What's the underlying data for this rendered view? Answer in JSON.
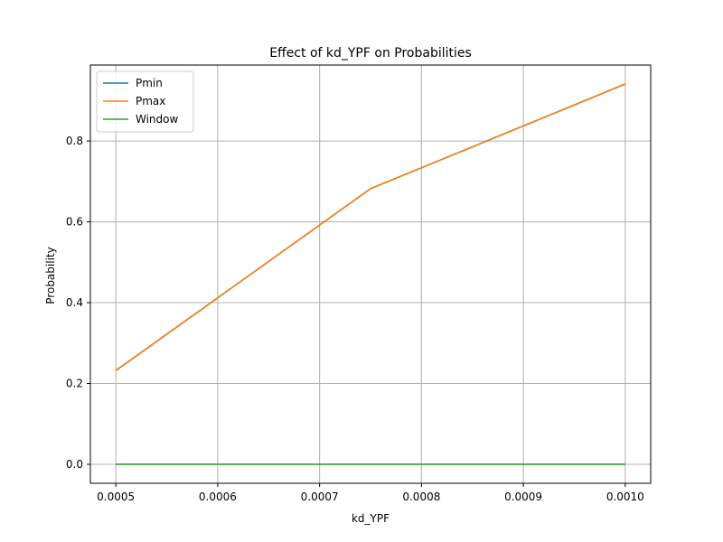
{
  "chart_data": {
    "type": "line",
    "title": "Effect of kd_YPF on Probabilities",
    "xlabel": "kd_YPF",
    "ylabel": "Probability",
    "x": [
      0.0005,
      0.00075,
      0.001
    ],
    "series": [
      {
        "name": "Pmin",
        "values": [
          0.232,
          0.682,
          0.941
        ],
        "color": "#1f77b4"
      },
      {
        "name": "Pmax",
        "values": [
          0.232,
          0.682,
          0.941
        ],
        "color": "#ff7f0e"
      },
      {
        "name": "Window",
        "values": [
          0.0,
          0.0,
          0.0
        ],
        "color": "#2ca02c"
      }
    ],
    "xlim": [
      0.000475,
      0.001025
    ],
    "ylim": [
      -0.047,
      0.988
    ],
    "xticks": [
      0.0005,
      0.0006,
      0.0007,
      0.0008,
      0.0009,
      0.001
    ],
    "xtick_labels": [
      "0.0005",
      "0.0006",
      "0.0007",
      "0.0008",
      "0.0009",
      "0.0010"
    ],
    "yticks": [
      0.0,
      0.2,
      0.4,
      0.6,
      0.8
    ],
    "ytick_labels": [
      "0.0",
      "0.2",
      "0.4",
      "0.6",
      "0.8"
    ],
    "grid": true,
    "legend_position": "top-left"
  }
}
